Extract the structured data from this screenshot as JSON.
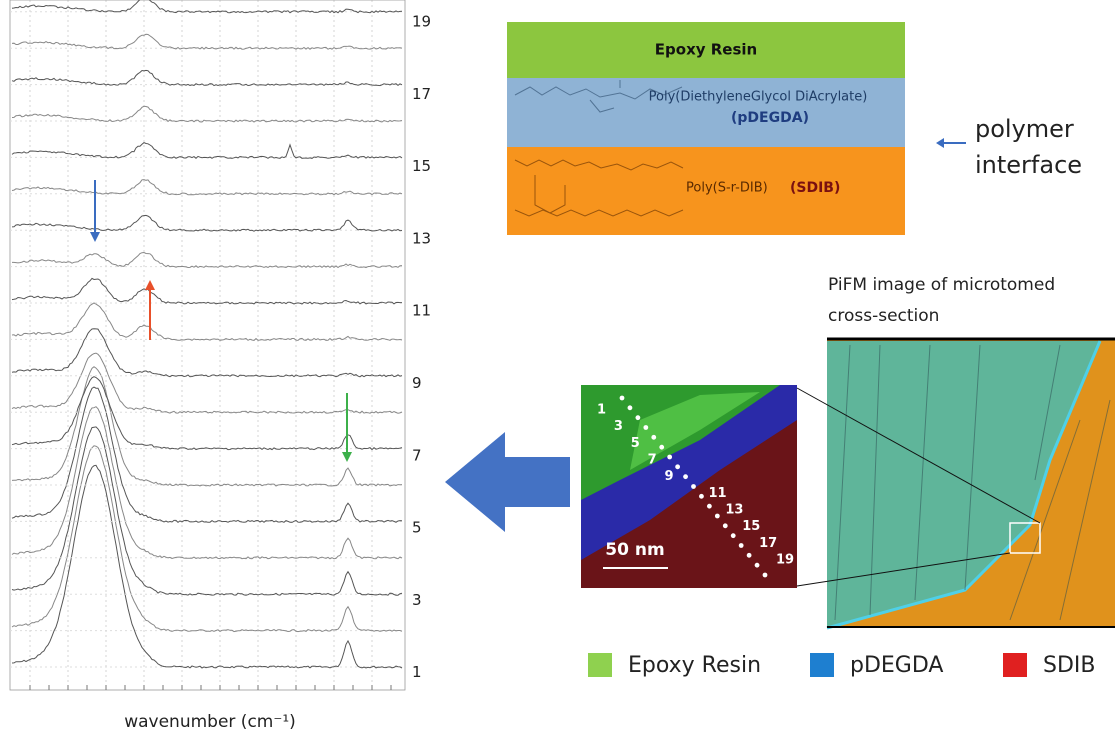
{
  "spectra": {
    "trace_labels": [
      19,
      17,
      15,
      13,
      11,
      9,
      7,
      5,
      3,
      1
    ],
    "x_axis_label": "wavenumber (cm⁻¹)"
  },
  "layers": {
    "epoxy": "Epoxy Resin",
    "pdegda_name": "Poly(DiethyleneGlycol DiAcrylate)",
    "pdegda_abbr": "(pDEGDA)",
    "sdib_name": "Poly(S-r-DIB)",
    "sdib_abbr": "(SDIB)"
  },
  "annotation": {
    "line1": "polymer",
    "line2": "interface"
  },
  "pifm": {
    "caption_line1": "PiFM image of microtomed",
    "caption_line2": "cross-section"
  },
  "inset": {
    "point_labels": [
      1,
      3,
      5,
      7,
      9,
      11,
      13,
      15,
      17,
      19
    ],
    "scale_bar": "50 nm"
  },
  "legend": [
    {
      "name": "Epoxy Resin",
      "color": "#8fd14f"
    },
    {
      "name": "pDEGDA",
      "color": "#1e7fd0"
    },
    {
      "name": "SDIB",
      "color": "#e02020"
    }
  ]
}
